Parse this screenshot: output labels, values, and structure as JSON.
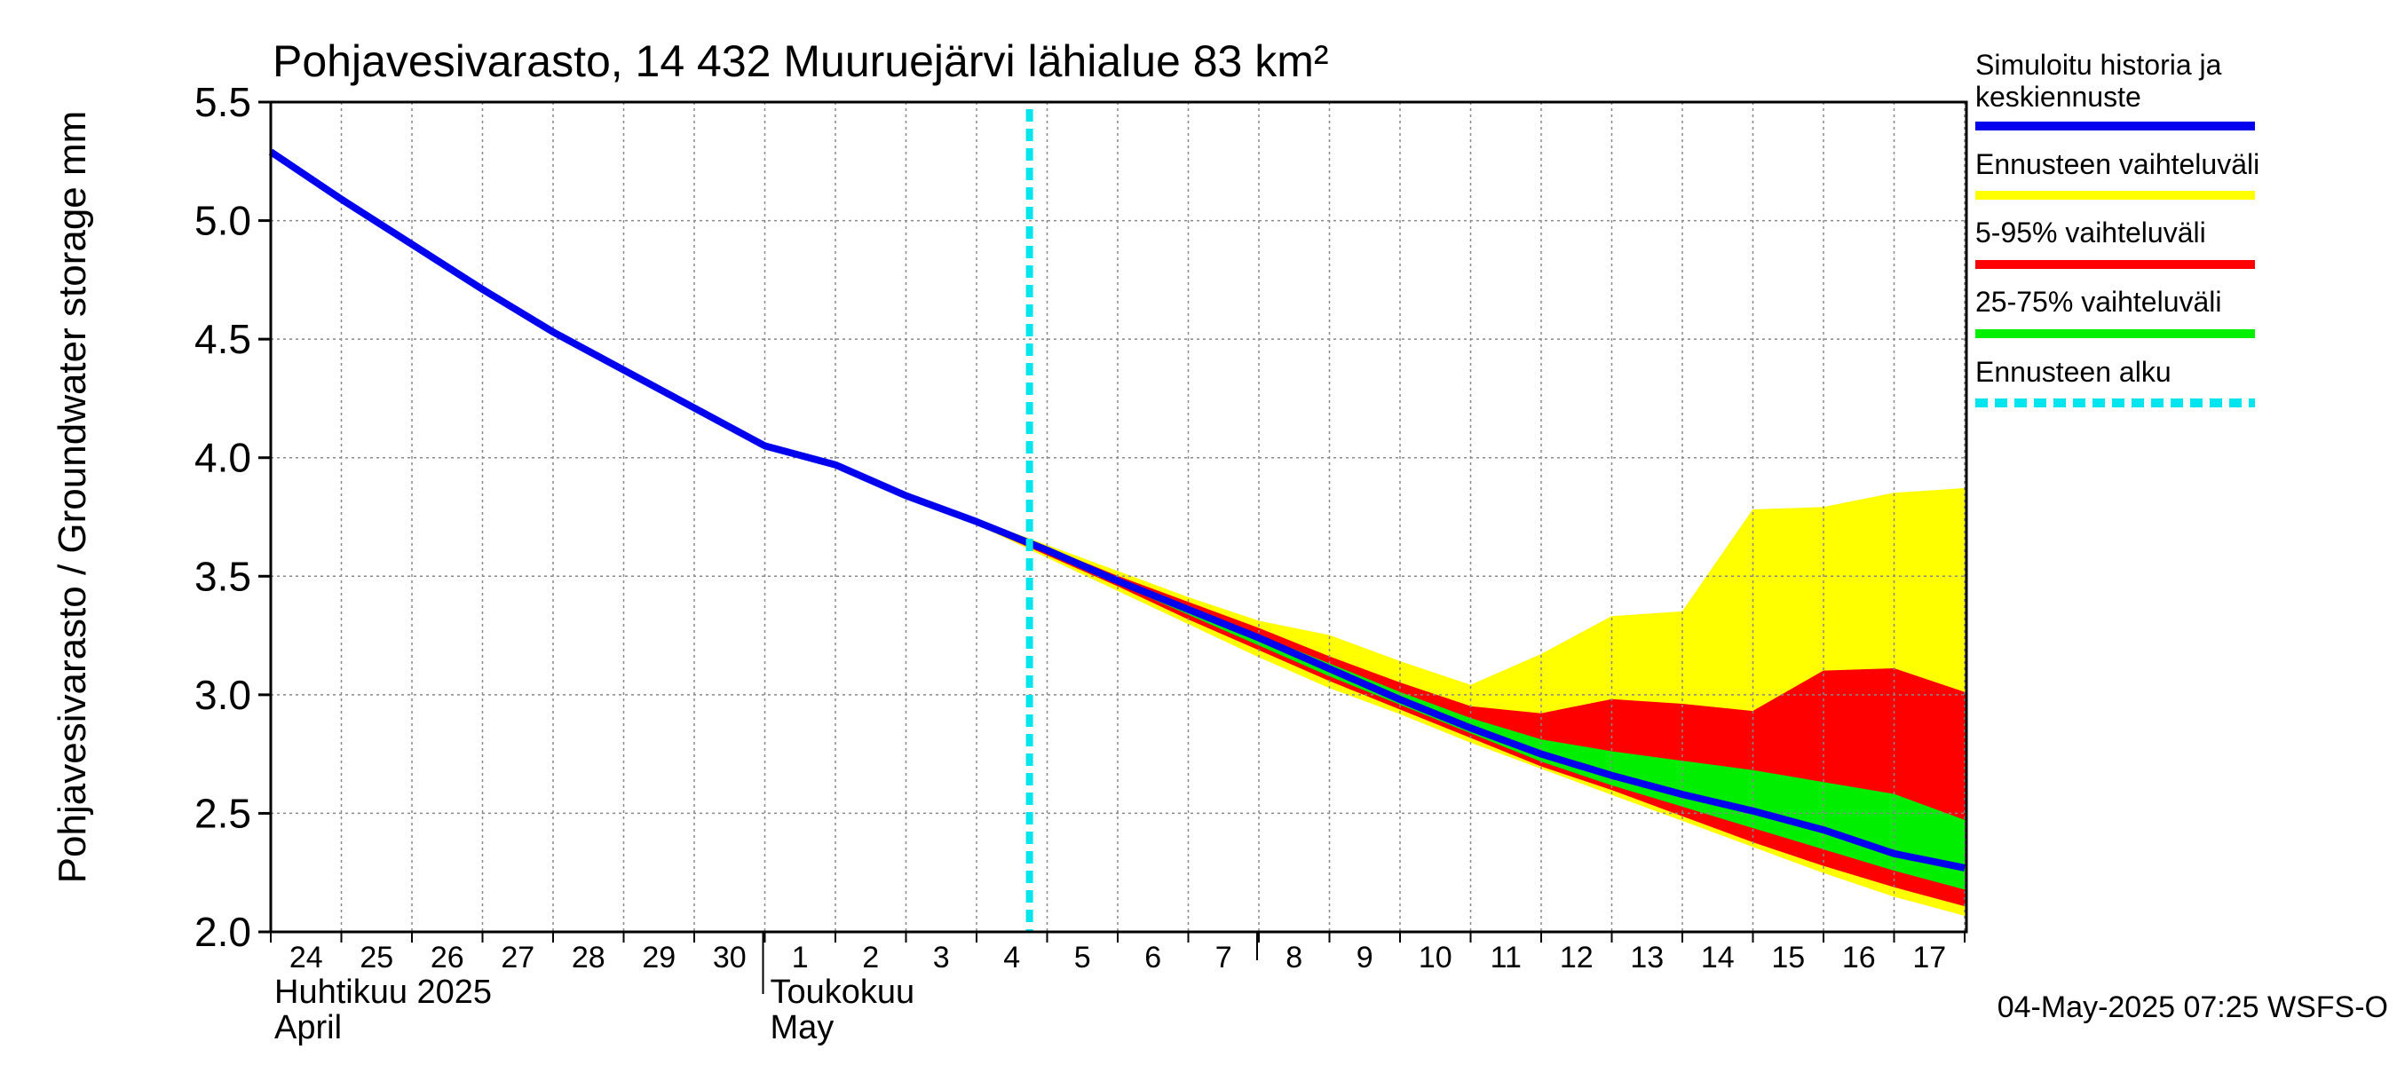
{
  "chart_data": {
    "type": "area",
    "title": "Pohjavesivarasto, 14 432 Muuruejärvi lähialue 83 km²",
    "ylabel": "Pohjavesivarasto / Groundwater storage   mm",
    "ylim": [
      2.0,
      5.5
    ],
    "yticks": [
      "2.0",
      "2.5",
      "3.0",
      "3.5",
      "4.0",
      "4.5",
      "5.0",
      "5.5"
    ],
    "x_tick_labels": [
      "24",
      "25",
      "26",
      "27",
      "28",
      "29",
      "30",
      "1",
      "2",
      "3",
      "4",
      "5",
      "6",
      "7",
      "8",
      "9",
      "10",
      "11",
      "12",
      "13",
      "14",
      "15",
      "16",
      "17"
    ],
    "month_labels": [
      {
        "fi": "Huhtikuu  2025",
        "en": "April"
      },
      {
        "fi": "Toukokuu",
        "en": "May"
      }
    ],
    "grid": true,
    "legend_placement": "right",
    "forecast_start_day": 10.75,
    "series": [
      {
        "name": "Simuloitu historia ja keskiennuste",
        "color": "#0000ee",
        "values": [
          5.29,
          5.09,
          4.9,
          4.71,
          4.53,
          4.37,
          4.21,
          4.05,
          3.97,
          3.84,
          3.73,
          3.61,
          3.48,
          3.36,
          3.24,
          3.11,
          2.98,
          2.86,
          2.75,
          2.66,
          2.58,
          2.51,
          2.43,
          2.33,
          2.27
        ]
      },
      {
        "name": "Ennusteen vaihteluväli",
        "color": "#ffff00",
        "upper": [
          null,
          null,
          null,
          null,
          null,
          null,
          null,
          null,
          null,
          null,
          3.74,
          3.63,
          3.52,
          3.41,
          3.31,
          3.25,
          3.14,
          3.04,
          3.17,
          3.33,
          3.35,
          3.78,
          3.79,
          3.85,
          3.87
        ],
        "lower": [
          null,
          null,
          null,
          null,
          null,
          null,
          null,
          null,
          null,
          null,
          3.72,
          3.58,
          3.44,
          3.3,
          3.16,
          3.03,
          2.92,
          2.8,
          2.69,
          2.58,
          2.47,
          2.36,
          2.25,
          2.15,
          2.07
        ]
      },
      {
        "name": "5-95% vaihteluväli",
        "color": "#ff0000",
        "upper": [
          null,
          null,
          null,
          null,
          null,
          null,
          null,
          null,
          null,
          null,
          3.74,
          3.62,
          3.5,
          3.39,
          3.28,
          3.16,
          3.05,
          2.95,
          2.92,
          2.98,
          2.96,
          2.93,
          3.1,
          3.11,
          3.01
        ],
        "lower": [
          null,
          null,
          null,
          null,
          null,
          null,
          null,
          null,
          null,
          null,
          3.72,
          3.59,
          3.46,
          3.32,
          3.19,
          3.06,
          2.94,
          2.82,
          2.7,
          2.6,
          2.49,
          2.38,
          2.28,
          2.19,
          2.11
        ]
      },
      {
        "name": "25-75% vaihteluväli",
        "color": "#00ee00",
        "upper": [
          null,
          null,
          null,
          null,
          null,
          null,
          null,
          null,
          null,
          null,
          3.73,
          3.61,
          3.49,
          3.37,
          3.25,
          3.13,
          3.01,
          2.9,
          2.81,
          2.76,
          2.72,
          2.68,
          2.63,
          2.58,
          2.47
        ],
        "lower": [
          null,
          null,
          null,
          null,
          null,
          null,
          null,
          null,
          null,
          null,
          3.73,
          3.6,
          3.47,
          3.34,
          3.21,
          3.08,
          2.96,
          2.84,
          2.72,
          2.62,
          2.53,
          2.44,
          2.35,
          2.26,
          2.18
        ]
      },
      {
        "name": "Ennusteen alku",
        "color": "#00e5ee"
      }
    ]
  },
  "footer": {
    "timestamp": "04-May-2025 07:25 WSFS-O"
  }
}
